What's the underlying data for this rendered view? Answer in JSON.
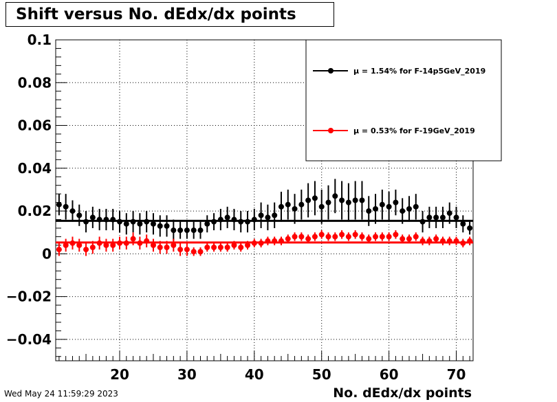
{
  "title": "Shift versus No. dEdx/dx points",
  "timestamp": "Wed May 24 11:59:29 2023",
  "chart_data": {
    "type": "scatter",
    "title": "Shift versus No. dEdx/dx points",
    "xlabel": "No. dEdx/dx points",
    "ylabel": "",
    "xlim": [
      10.5,
      72.5
    ],
    "ylim": [
      -0.05,
      0.1
    ],
    "xticks": [
      20,
      30,
      40,
      50,
      60,
      70
    ],
    "yticks": [
      -0.04,
      -0.02,
      0,
      0.02,
      0.04,
      0.06,
      0.08,
      0.1
    ],
    "ytick_labels": [
      "−0.04",
      "−0.02",
      "0",
      "0.02",
      "0.04",
      "0.06",
      "0.08",
      "0.1"
    ],
    "grid": true,
    "legend_position": "top-right",
    "series": [
      {
        "name": "μ =  1.54% for F-14p5GeV_2019",
        "color": "#000000",
        "fit_value": 0.0154,
        "x": [
          11,
          12,
          13,
          14,
          15,
          16,
          17,
          18,
          19,
          20,
          21,
          22,
          23,
          24,
          25,
          26,
          27,
          28,
          29,
          30,
          31,
          32,
          33,
          34,
          35,
          36,
          37,
          38,
          39,
          40,
          41,
          42,
          43,
          44,
          45,
          46,
          47,
          48,
          49,
          50,
          51,
          52,
          53,
          54,
          55,
          56,
          57,
          58,
          59,
          60,
          61,
          62,
          63,
          64,
          65,
          66,
          67,
          68,
          69,
          70,
          71,
          72
        ],
        "y": [
          0.023,
          0.022,
          0.02,
          0.018,
          0.015,
          0.017,
          0.016,
          0.016,
          0.016,
          0.015,
          0.014,
          0.015,
          0.014,
          0.015,
          0.014,
          0.013,
          0.013,
          0.011,
          0.011,
          0.011,
          0.011,
          0.011,
          0.014,
          0.015,
          0.016,
          0.017,
          0.016,
          0.015,
          0.015,
          0.016,
          0.018,
          0.017,
          0.018,
          0.022,
          0.023,
          0.021,
          0.023,
          0.025,
          0.026,
          0.022,
          0.024,
          0.027,
          0.025,
          0.024,
          0.025,
          0.025,
          0.02,
          0.021,
          0.023,
          0.022,
          0.024,
          0.02,
          0.021,
          0.022,
          0.015,
          0.017,
          0.017,
          0.017,
          0.019,
          0.017,
          0.014,
          0.012
        ],
        "err": [
          0.005,
          0.006,
          0.005,
          0.005,
          0.005,
          0.005,
          0.005,
          0.005,
          0.005,
          0.005,
          0.005,
          0.005,
          0.005,
          0.005,
          0.005,
          0.005,
          0.005,
          0.005,
          0.004,
          0.004,
          0.004,
          0.004,
          0.004,
          0.004,
          0.005,
          0.005,
          0.005,
          0.005,
          0.005,
          0.005,
          0.006,
          0.006,
          0.006,
          0.007,
          0.007,
          0.007,
          0.007,
          0.008,
          0.008,
          0.008,
          0.008,
          0.008,
          0.009,
          0.009,
          0.009,
          0.009,
          0.007,
          0.007,
          0.007,
          0.007,
          0.006,
          0.006,
          0.006,
          0.006,
          0.005,
          0.005,
          0.005,
          0.005,
          0.005,
          0.005,
          0.004,
          0.003
        ]
      },
      {
        "name": "μ =  0.53% for F-19GeV_2019",
        "color": "#ff0000",
        "fit_value": 0.0053,
        "x": [
          11,
          12,
          13,
          14,
          15,
          16,
          17,
          18,
          19,
          20,
          21,
          22,
          23,
          24,
          25,
          26,
          27,
          28,
          29,
          30,
          31,
          32,
          33,
          34,
          35,
          36,
          37,
          38,
          39,
          40,
          41,
          42,
          43,
          44,
          45,
          46,
          47,
          48,
          49,
          50,
          51,
          52,
          53,
          54,
          55,
          56,
          57,
          58,
          59,
          60,
          61,
          62,
          63,
          64,
          65,
          66,
          67,
          68,
          69,
          70,
          71,
          72
        ],
        "y": [
          0.002,
          0.004,
          0.005,
          0.004,
          0.002,
          0.003,
          0.005,
          0.004,
          0.004,
          0.005,
          0.005,
          0.007,
          0.005,
          0.006,
          0.004,
          0.003,
          0.003,
          0.004,
          0.002,
          0.002,
          0.001,
          0.001,
          0.003,
          0.003,
          0.003,
          0.003,
          0.004,
          0.003,
          0.004,
          0.005,
          0.005,
          0.006,
          0.006,
          0.006,
          0.007,
          0.008,
          0.008,
          0.007,
          0.008,
          0.009,
          0.008,
          0.008,
          0.009,
          0.008,
          0.009,
          0.008,
          0.007,
          0.008,
          0.008,
          0.008,
          0.009,
          0.007,
          0.007,
          0.008,
          0.006,
          0.006,
          0.007,
          0.006,
          0.006,
          0.006,
          0.005,
          0.006
        ],
        "err": [
          0.003,
          0.003,
          0.003,
          0.003,
          0.003,
          0.003,
          0.003,
          0.003,
          0.003,
          0.003,
          0.003,
          0.003,
          0.003,
          0.003,
          0.003,
          0.003,
          0.003,
          0.003,
          0.003,
          0.003,
          0.002,
          0.002,
          0.002,
          0.002,
          0.002,
          0.002,
          0.002,
          0.002,
          0.002,
          0.002,
          0.002,
          0.002,
          0.002,
          0.002,
          0.002,
          0.002,
          0.002,
          0.002,
          0.002,
          0.002,
          0.002,
          0.002,
          0.002,
          0.002,
          0.002,
          0.002,
          0.002,
          0.002,
          0.002,
          0.002,
          0.002,
          0.002,
          0.002,
          0.002,
          0.002,
          0.002,
          0.002,
          0.002,
          0.002,
          0.002,
          0.002,
          0.002
        ]
      }
    ]
  }
}
